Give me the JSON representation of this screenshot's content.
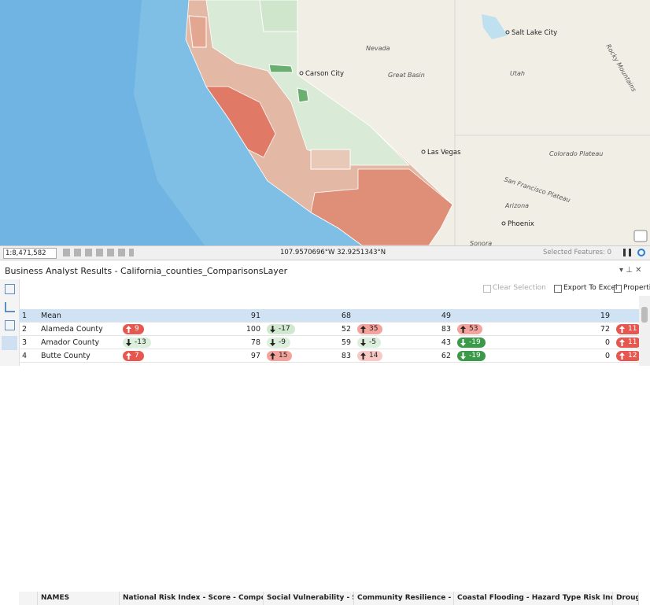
{
  "map": {
    "labels": [
      "Salt Lake City",
      "Nevada",
      "Carson City",
      "Great Basin",
      "Utah",
      "Rocky Mountains",
      "Las Vegas",
      "Colorado Plateau",
      "San Francisco Plateau",
      "Arizona",
      "Phoenix",
      "Sonora"
    ]
  },
  "status_bar": {
    "scale": "1:8,471,582",
    "coordinates": "107.9570696°W 32.9251343°N",
    "selected": "Selected Features: 0"
  },
  "panel": {
    "title": "Business Analyst Results - California_counties_ComparisonsLayer",
    "toolbar": [
      "Clear Selection",
      "Export To Excel",
      "Properties"
    ]
  },
  "table": {
    "headers": [
      "NAMES",
      "National Risk Index - Score - Composite",
      "Social Vulnerability - Score",
      "Community Resilience - Score",
      "Coastal Flooding - Hazard Type Risk Index Score",
      "Drough"
    ],
    "rows": [
      {
        "num": 1,
        "name": "Mean",
        "cells": [
          {
            "value": 91
          },
          {
            "value": 68
          },
          {
            "value": 49
          },
          {
            "value": 19
          }
        ]
      },
      {
        "num": 2,
        "name": "Alameda County",
        "cells": [
          {
            "diff": 9,
            "value": 100,
            "color": "#e5574f"
          },
          {
            "diff": -17,
            "value": 52,
            "color": "#cfe8cf"
          },
          {
            "diff": 35,
            "value": 83,
            "color": "#f3a39b"
          },
          {
            "diff": 53,
            "value": 72,
            "color": "#f3a39b"
          },
          {
            "diff": 11,
            "color": "#e5574f"
          }
        ]
      },
      {
        "num": 3,
        "name": "Amador County",
        "cells": [
          {
            "diff": -13,
            "value": 78,
            "color": "#dcefdc"
          },
          {
            "diff": -9,
            "value": 59,
            "color": "#dcefdc"
          },
          {
            "diff": -5,
            "value": 43,
            "color": "#dcefdc"
          },
          {
            "diff": -19,
            "value": 0,
            "color": "#3a9a4a"
          },
          {
            "diff": 11,
            "color": "#e5574f"
          }
        ]
      },
      {
        "num": 4,
        "name": "Butte County",
        "cells": [
          {
            "diff": 7,
            "value": 97,
            "color": "#e5574f"
          },
          {
            "diff": 15,
            "value": 83,
            "color": "#f3a39b"
          },
          {
            "diff": 14,
            "value": 62,
            "color": "#f8c9c4"
          },
          {
            "diff": -19,
            "value": 0,
            "color": "#3a9a4a"
          },
          {
            "diff": 12,
            "color": "#e5574f"
          }
        ]
      }
    ]
  }
}
